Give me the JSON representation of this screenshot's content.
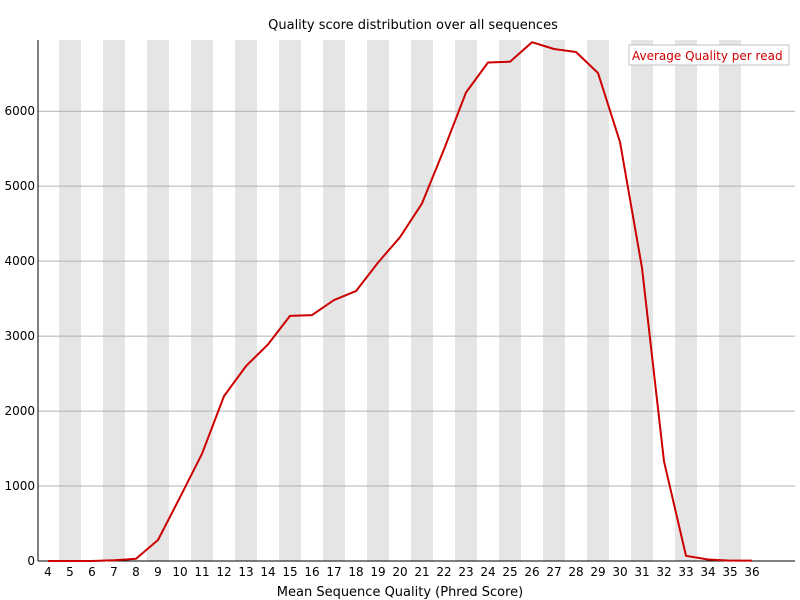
{
  "chart_data": {
    "type": "line",
    "title": "Quality score distribution over all sequences",
    "xlabel": "Mean Sequence Quality (Phred Score)",
    "ylabel": "",
    "x": [
      4,
      5,
      6,
      7,
      8,
      9,
      10,
      11,
      12,
      13,
      14,
      15,
      16,
      17,
      18,
      19,
      20,
      21,
      22,
      23,
      24,
      25,
      26,
      27,
      28,
      29,
      30,
      31,
      32,
      33,
      34,
      35,
      36
    ],
    "xlim": [
      4,
      36
    ],
    "ylim": [
      0,
      6950
    ],
    "yticks": [
      0,
      1000,
      2000,
      3000,
      4000,
      5000,
      6000
    ],
    "grid": "horizontal",
    "background_bands": "alternating vertical grey bands",
    "legend_position": "top-right",
    "series": [
      {
        "name": "Average Quality per read",
        "color": "#cc0000",
        "values": [
          0,
          0,
          0,
          10,
          30,
          280,
          850,
          1430,
          2200,
          2600,
          2890,
          3270,
          3280,
          3480,
          3600,
          3980,
          4320,
          4770,
          5490,
          6250,
          6650,
          6660,
          6920,
          6830,
          6790,
          6510,
          5590,
          3910,
          1330,
          70,
          20,
          5,
          5
        ]
      }
    ]
  }
}
